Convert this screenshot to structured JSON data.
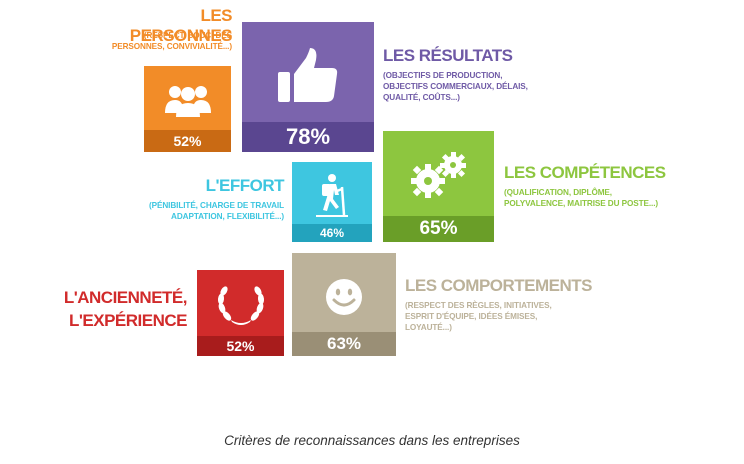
{
  "chart_data": {
    "type": "table",
    "title": "",
    "caption": "Critères de reconnaissances dans les entreprises",
    "categories": [
      {
        "key": "personnes",
        "title": "LES PERSONNES",
        "details": [
          "(RESPECT, SOUCI DES",
          "PERSONNES, CONVIVIALITÉ...)"
        ],
        "value": 52,
        "label": "52%",
        "color": "#f28c28",
        "icon": "people-icon"
      },
      {
        "key": "resultats",
        "title": "LES RÉSULTATS",
        "details": [
          "(OBJECTIFS DE PRODUCTION,",
          "OBJECTIFS COMMERCIAUX, DÉLAIS,",
          "QUALITÉ, COÛTS...)"
        ],
        "value": 78,
        "label": "78%",
        "color": "#7b64ad",
        "icon": "thumbs-up-icon"
      },
      {
        "key": "effort",
        "title": "L'EFFORT",
        "details": [
          "(PÉNIBILITÉ, CHARGE DE TRAVAIL",
          "ADAPTATION, FLEXIBILITÉ...)"
        ],
        "value": 46,
        "label": "46%",
        "color": "#3ec6e0",
        "icon": "hiker-icon"
      },
      {
        "key": "competences",
        "title": "LES COMPÉTENCES",
        "details": [
          "(QUALIFICATION, DIPLÔME,",
          "POLYVALENCE, MAITRISE DU POSTE...)"
        ],
        "value": 65,
        "label": "65%",
        "color": "#8dc63f",
        "icon": "gears-icon"
      },
      {
        "key": "anciennete",
        "title_lines": [
          "L'ANCIENNETÉ,",
          "L'EXPÉRIENCE"
        ],
        "details": [],
        "value": 52,
        "label": "52%",
        "color": "#d12b2b",
        "icon": "laurel-wreath-icon"
      },
      {
        "key": "comportements",
        "title": "LES COMPORTEMENTS",
        "details": [
          "(RESPECT DES RÈGLES, INITIATIVES,",
          "ESPRIT D'ÉQUIPE, IDÉES ÉMISES,",
          "LOYAUTÉ...)"
        ],
        "value": 63,
        "label": "63%",
        "color": "#bcb29a",
        "icon": "smiley-icon"
      }
    ],
    "title_colors": {
      "personnes": "#f28c28",
      "resultats": "#6f5aa6",
      "effort": "#3ec6e0",
      "competences": "#8dc63f",
      "anciennete": "#d12b2b",
      "comportements": "#bcb29a"
    },
    "band_colors": {
      "personnes": "#c96a14",
      "resultats": "#5a4690",
      "effort": "#23a3bd",
      "competences": "#6a9e28",
      "anciennete": "#a81c1c",
      "comportements": "#9a8f76"
    }
  }
}
